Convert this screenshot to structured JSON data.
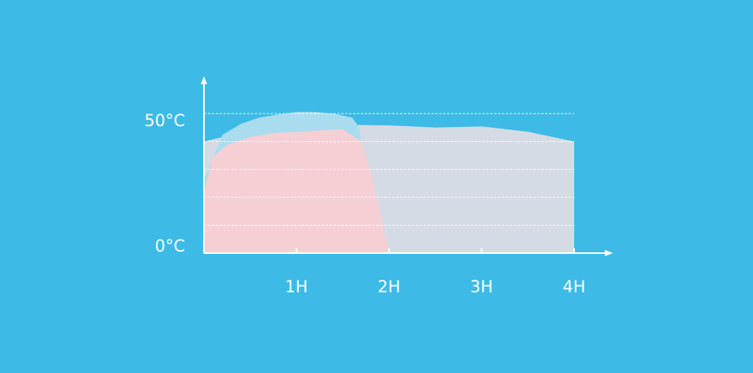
{
  "chart_data": {
    "type": "area",
    "background": "#3dbbe6",
    "xlim": [
      0,
      4.4
    ],
    "ylim": [
      0,
      60
    ],
    "xticks": [
      {
        "value": 1,
        "label": "1H"
      },
      {
        "value": 2,
        "label": "2H"
      },
      {
        "value": 3,
        "label": "3H"
      },
      {
        "value": 4,
        "label": "4H"
      }
    ],
    "yticks": [
      {
        "value": 0,
        "label": "0°C"
      },
      {
        "value": 50,
        "label": "50°C"
      }
    ],
    "grid": [
      10,
      20,
      30,
      40,
      50
    ],
    "series": [
      {
        "color": "#d4dbe4",
        "x": [
          0,
          0.5,
          1,
          1.5,
          2,
          2.5,
          3,
          3.5,
          4
        ],
        "values": [
          40,
          44,
          45.5,
          46,
          45.8,
          45,
          45.4,
          43.5,
          40
        ]
      },
      {
        "color": "#a9dcef",
        "x": [
          0,
          0.2,
          0.4,
          0.6,
          0.8,
          1,
          1.2,
          1.4,
          1.6,
          1.68,
          1.72,
          1.76
        ],
        "values": [
          25.6,
          42.4,
          46.3,
          48.6,
          49.7,
          50.6,
          50.6,
          50,
          48.6,
          45,
          30,
          0
        ]
      },
      {
        "color": "#f6cfd4",
        "x": [
          0,
          0.1,
          0.25,
          0.5,
          0.75,
          1,
          1.25,
          1.5,
          1.7,
          1.8,
          1.9,
          2
        ],
        "values": [
          21.9,
          34.6,
          38.8,
          41.6,
          43,
          43.5,
          44,
          44.4,
          40,
          29,
          15,
          0
        ]
      }
    ]
  }
}
